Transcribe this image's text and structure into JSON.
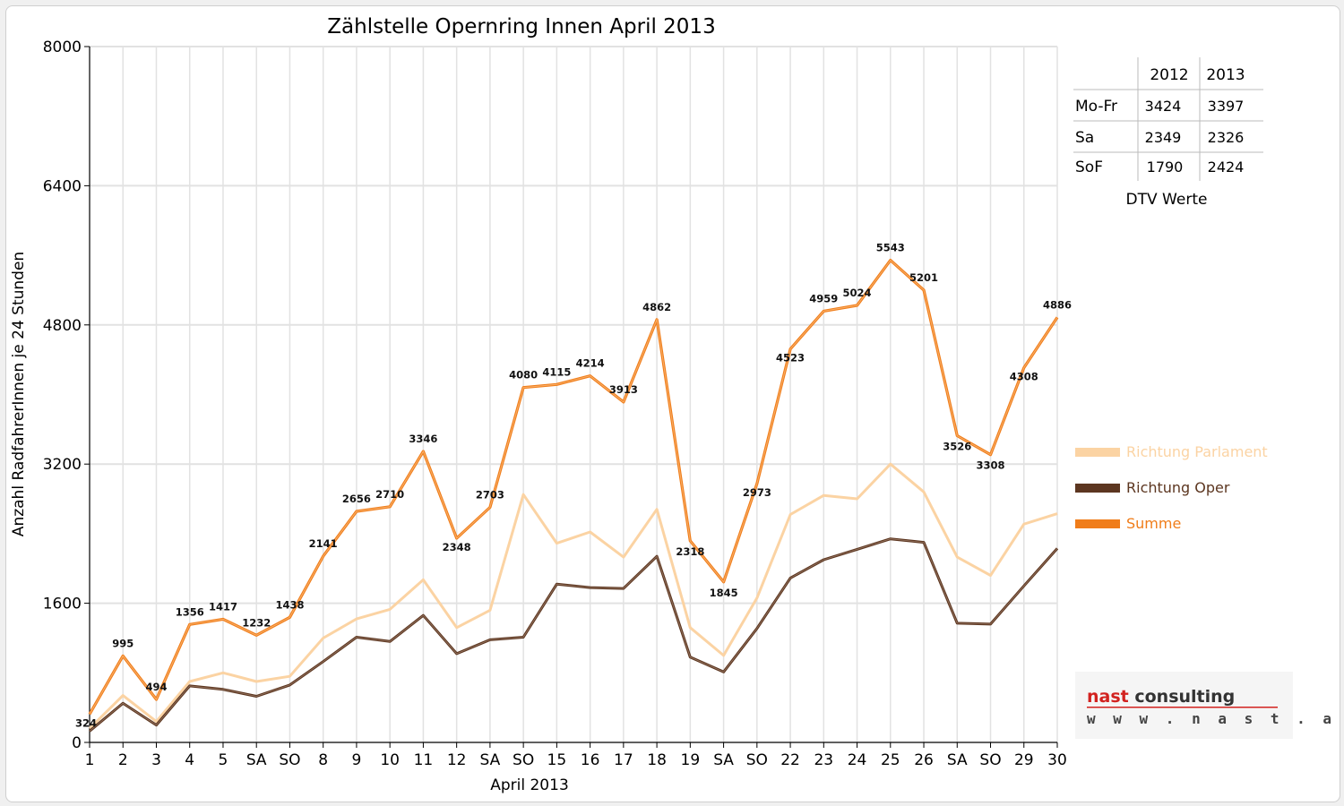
{
  "chart_data": {
    "type": "line",
    "title": "Zählstelle Opernring Innen April 2013",
    "xlabel": "April 2013",
    "ylabel": "Anzahl RadfahrerInnen je 24 Stunden",
    "ylim": [
      0,
      8000
    ],
    "yticks": [
      "0",
      "1600",
      "3200",
      "4800",
      "6400",
      "8000"
    ],
    "categories": [
      "1",
      "2",
      "3",
      "4",
      "5",
      "SA",
      "SO",
      "8",
      "9",
      "10",
      "11",
      "12",
      "SA",
      "SO",
      "15",
      "16",
      "17",
      "18",
      "19",
      "SA",
      "SO",
      "22",
      "23",
      "24",
      "25",
      "26",
      "SA",
      "SO",
      "29",
      "30"
    ],
    "red_categories": [
      0,
      6,
      13,
      20,
      27
    ],
    "series": [
      {
        "name": "Richtung Parlament",
        "color": "#fbd3a3",
        "values": [
          160,
          540,
          240,
          700,
          800,
          700,
          760,
          1200,
          1420,
          1530,
          1870,
          1320,
          1520,
          2850,
          2290,
          2420,
          2130,
          2680,
          1320,
          1000,
          1660,
          2620,
          2840,
          2800,
          3200,
          2880,
          2130,
          1920,
          2510,
          2630
        ]
      },
      {
        "name": "Richtung Oper",
        "color": "#5c3620",
        "values": [
          130,
          450,
          200,
          650,
          610,
          530,
          660,
          930,
          1210,
          1160,
          1460,
          1020,
          1180,
          1210,
          1820,
          1780,
          1770,
          2140,
          980,
          810,
          1310,
          1890,
          2100,
          2220,
          2340,
          2300,
          1370,
          1360,
          1800,
          2230
        ]
      },
      {
        "name": "Summe",
        "color": "#f07d1a",
        "values": [
          324,
          995,
          494,
          1356,
          1417,
          1232,
          1438,
          2141,
          2656,
          2710,
          3346,
          2348,
          2703,
          4080,
          4115,
          4214,
          3913,
          4862,
          2318,
          1845,
          2973,
          4523,
          4959,
          5024,
          5543,
          5201,
          3526,
          3308,
          4308,
          4886
        ],
        "labels": [
          "324",
          "995",
          "494",
          "1356",
          "1417",
          "1232",
          "1438",
          "2141",
          "2656",
          "2710",
          "3346",
          "2348",
          "2703",
          "4080",
          "4115",
          "4214",
          "3913",
          "4862",
          "2318",
          "1845",
          "2973",
          "4523",
          "4959",
          "5024",
          "5543",
          "5201",
          "3526",
          "3308",
          "4308",
          "4886"
        ]
      }
    ],
    "grid": true,
    "legend": "right"
  },
  "dtv_table": {
    "caption": "DTV Werte",
    "headers": [
      "",
      "2012",
      "2013"
    ],
    "rows": [
      [
        "Mo-Fr",
        "3424",
        "3397"
      ],
      [
        "Sa",
        "2349",
        "2326"
      ],
      [
        "SoF",
        "1790",
        "2424"
      ]
    ]
  },
  "logo": {
    "name": "nast consulting",
    "url": "w w w . n a s t . a t"
  }
}
